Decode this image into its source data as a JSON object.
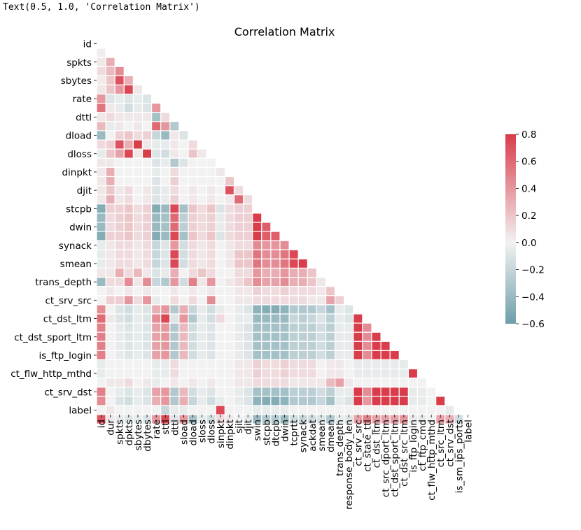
{
  "output_line": "Text(0.5, 1.0, 'Correlation Matrix')",
  "chart_data": {
    "type": "heatmap",
    "title": "Correlation Matrix",
    "mask": "upper-triangle",
    "features": [
      "id",
      "dur",
      "spkts",
      "dpkts",
      "sbytes",
      "dbytes",
      "rate",
      "sttl",
      "dttl",
      "sload",
      "dload",
      "sloss",
      "dloss",
      "sinpkt",
      "dinpkt",
      "sjit",
      "djit",
      "swin",
      "stcpb",
      "dtcpb",
      "dwin",
      "tcprtt",
      "synack",
      "ackdat",
      "smean",
      "dmean",
      "trans_depth",
      "response_body_len",
      "ct_srv_src",
      "ct_state_ttl",
      "ct_dst_ltm",
      "ct_src_dport_ltm",
      "ct_dst_sport_ltm",
      "ct_dst_src_ltm",
      "is_ftp_login",
      "ct_ftp_cmd",
      "ct_flw_http_mthd",
      "ct_src_ltm",
      "ct_srv_dst",
      "is_sm_ips_ports",
      "label"
    ],
    "y_tick_labels": [
      "id",
      "spkts",
      "sbytes",
      "rate",
      "dttl",
      "dload",
      "dloss",
      "dinpkt",
      "djit",
      "stcpb",
      "dwin",
      "synack",
      "smean",
      "trans_depth",
      "ct_srv_src",
      "ct_dst_ltm",
      "ct_dst_sport_ltm",
      "is_ftp_login",
      "ct_flw_http_mthd",
      "ct_srv_dst",
      "label"
    ],
    "x_tick_labels": [
      "id",
      "dur",
      "spkts",
      "dpkts",
      "sbytes",
      "dbytes",
      "rate",
      "sttl",
      "dttl",
      "sload",
      "dload",
      "sloss",
      "dloss",
      "sinpkt",
      "dinpkt",
      "sjit",
      "djit",
      "swin",
      "stcpb",
      "dtcpb",
      "dwin",
      "tcprtt",
      "synack",
      "ackdat",
      "smean",
      "dmean",
      "trans_depth",
      "response_body_len",
      "ct_srv_src",
      "ct_state_ttl",
      "ct_dst_ltm",
      "ct_src_dport_ltm",
      "ct_dst_sport_ltm",
      "ct_dst_src_ltm",
      "is_ftp_login",
      "ct_ftp_cmd",
      "ct_flw_http_mthd",
      "ct_src_ltm",
      "ct_srv_dst",
      "is_sm_ips_ports",
      "label"
    ],
    "rows": [
      [],
      [
        0.02
      ],
      [
        0.05,
        0.3
      ],
      [
        0.1,
        0.25,
        0.45
      ],
      [
        0.03,
        0.2,
        0.7,
        0.3
      ],
      [
        0.05,
        0.2,
        0.4,
        0.75,
        0.05
      ],
      [
        0.4,
        -0.1,
        -0.05,
        -0.1,
        -0.05,
        -0.1
      ],
      [
        0.55,
        0.05,
        -0.05,
        -0.15,
        -0.05,
        -0.1,
        0.4
      ],
      [
        0.05,
        0.1,
        0.05,
        0.05,
        0.05,
        0.05,
        -0.35,
        0.1
      ],
      [
        0.25,
        -0.05,
        0.05,
        0.0,
        0.05,
        0.0,
        0.6,
        0.4,
        -0.3
      ],
      [
        -0.4,
        0.0,
        0.15,
        0.2,
        0.1,
        0.15,
        -0.2,
        -0.4,
        0.05,
        -0.1
      ],
      [
        0.1,
        0.15,
        0.7,
        0.3,
        0.8,
        0.05,
        -0.05,
        -0.05,
        0.05,
        0.0,
        0.1
      ],
      [
        -0.05,
        0.2,
        0.35,
        0.75,
        0.05,
        0.8,
        -0.1,
        -0.15,
        0.05,
        0.0,
        0.2,
        0.05
      ],
      [
        0.05,
        0.05,
        0.0,
        0.0,
        0.0,
        0.0,
        -0.1,
        -0.05,
        -0.3,
        -0.1,
        0.0,
        0.0,
        0.0
      ],
      [
        0.05,
        0.3,
        0.0,
        0.0,
        0.0,
        0.0,
        -0.05,
        0.0,
        0.1,
        0.0,
        0.0,
        0.0,
        0.0,
        0.05
      ],
      [
        0.05,
        0.3,
        0.0,
        0.0,
        0.0,
        0.0,
        -0.1,
        0.0,
        0.15,
        0.0,
        0.0,
        0.0,
        0.0,
        0.0,
        0.2
      ],
      [
        0.05,
        0.2,
        0.05,
        0.1,
        0.0,
        0.05,
        -0.1,
        -0.05,
        0.1,
        0.0,
        0.05,
        0.0,
        0.05,
        0.0,
        0.7,
        0.1
      ],
      [
        0.05,
        0.3,
        0.05,
        0.1,
        0.0,
        0.05,
        -0.1,
        -0.05,
        0.15,
        0.0,
        0.05,
        0.0,
        0.05,
        0.0,
        0.05,
        0.6,
        0.1
      ],
      [
        -0.5,
        0.15,
        0.15,
        0.2,
        0.1,
        0.15,
        -0.5,
        -0.4,
        0.75,
        -0.35,
        0.2,
        0.1,
        0.2,
        -0.1,
        0.1,
        0.15,
        0.15
      ],
      [
        -0.4,
        0.1,
        0.15,
        0.2,
        0.1,
        0.15,
        -0.4,
        -0.35,
        0.6,
        -0.25,
        0.15,
        0.1,
        0.15,
        -0.05,
        0.1,
        0.15,
        0.15,
        0.8
      ],
      [
        -0.4,
        0.1,
        0.15,
        0.2,
        0.1,
        0.15,
        -0.4,
        -0.35,
        0.6,
        -0.25,
        0.15,
        0.1,
        0.15,
        -0.05,
        0.1,
        0.15,
        0.15,
        0.8,
        0.65
      ],
      [
        -0.5,
        0.15,
        0.15,
        0.2,
        0.1,
        0.15,
        -0.5,
        -0.4,
        0.75,
        -0.35,
        0.2,
        0.1,
        0.2,
        -0.1,
        0.1,
        0.15,
        0.15,
        0.8,
        0.65,
        0.65
      ],
      [
        -0.05,
        0.05,
        0.1,
        0.1,
        0.05,
        0.1,
        -0.2,
        -0.1,
        0.4,
        -0.15,
        0.1,
        0.05,
        0.1,
        0.0,
        0.05,
        0.1,
        0.1,
        0.45,
        0.4,
        0.4,
        0.45
      ],
      [
        -0.05,
        0.05,
        0.1,
        0.1,
        0.05,
        0.1,
        -0.2,
        -0.1,
        0.75,
        -0.15,
        0.1,
        0.05,
        0.1,
        0.0,
        0.05,
        0.2,
        0.2,
        0.55,
        0.45,
        0.45,
        0.55,
        0.75
      ],
      [
        -0.05,
        0.05,
        0.1,
        0.1,
        0.05,
        0.1,
        -0.2,
        -0.1,
        0.75,
        -0.15,
        0.1,
        0.05,
        0.1,
        0.0,
        0.05,
        0.2,
        0.2,
        0.55,
        0.45,
        0.45,
        0.55,
        0.75,
        0.8
      ],
      [
        0.05,
        0.05,
        0.3,
        0.1,
        0.25,
        0.05,
        -0.1,
        -0.05,
        0.3,
        0.0,
        0.1,
        0.2,
        0.1,
        0.0,
        0.0,
        0.1,
        0.1,
        0.4,
        0.3,
        0.3,
        0.4,
        0.3,
        0.3,
        0.2
      ],
      [
        -0.4,
        0.1,
        0.1,
        0.45,
        0.05,
        0.45,
        -0.2,
        -0.3,
        0.4,
        -0.15,
        0.5,
        0.05,
        0.4,
        0.0,
        0.05,
        0.1,
        0.2,
        0.45,
        0.35,
        0.35,
        0.45,
        0.3,
        0.3,
        0.2,
        0.05
      ],
      [
        0.0,
        0.05,
        0.0,
        0.05,
        0.0,
        0.05,
        0.0,
        0.0,
        0.05,
        0.0,
        0.05,
        0.0,
        0.05,
        0.0,
        0.0,
        0.05,
        0.05,
        0.15,
        0.1,
        0.1,
        0.15,
        0.1,
        0.1,
        0.1,
        0.05,
        0.2
      ],
      [
        0.0,
        0.15,
        0.15,
        0.4,
        0.1,
        0.4,
        -0.05,
        0.0,
        0.1,
        0.0,
        0.1,
        0.0,
        0.45,
        0.0,
        0.0,
        0.05,
        0.05,
        0.1,
        0.1,
        0.1,
        0.1,
        0.1,
        0.1,
        0.05,
        0.05,
        0.35,
        0.15
      ],
      [
        0.45,
        0.0,
        -0.1,
        -0.15,
        -0.05,
        -0.1,
        0.3,
        0.4,
        -0.3,
        0.3,
        -0.2,
        -0.05,
        -0.15,
        -0.05,
        0.0,
        -0.05,
        -0.1,
        -0.45,
        -0.5,
        -0.5,
        -0.45,
        -0.3,
        -0.3,
        -0.3,
        -0.2,
        -0.35,
        -0.05,
        -0.1
      ],
      [
        0.6,
        0.05,
        -0.1,
        -0.15,
        -0.05,
        -0.1,
        0.45,
        0.75,
        -0.1,
        0.4,
        -0.3,
        -0.05,
        -0.15,
        0.1,
        0.0,
        -0.05,
        -0.05,
        -0.4,
        -0.4,
        -0.4,
        -0.4,
        -0.2,
        -0.25,
        -0.2,
        -0.1,
        -0.25,
        -0.05,
        -0.1,
        0.8
      ],
      [
        0.5,
        0.0,
        -0.05,
        -0.1,
        -0.05,
        -0.1,
        0.35,
        0.4,
        -0.3,
        0.25,
        -0.15,
        -0.05,
        -0.1,
        0.0,
        0.0,
        -0.05,
        -0.1,
        -0.35,
        -0.35,
        -0.35,
        -0.35,
        -0.25,
        -0.25,
        -0.25,
        -0.15,
        -0.25,
        -0.05,
        -0.05,
        0.8,
        0.45
      ],
      [
        0.5,
        0.0,
        -0.05,
        -0.1,
        -0.05,
        -0.1,
        0.35,
        0.4,
        -0.3,
        0.25,
        -0.15,
        -0.05,
        -0.1,
        0.0,
        0.0,
        -0.05,
        -0.1,
        -0.35,
        -0.35,
        -0.35,
        -0.35,
        -0.25,
        -0.25,
        -0.25,
        -0.15,
        -0.25,
        -0.05,
        -0.05,
        0.8,
        0.45,
        0.8
      ],
      [
        0.5,
        0.0,
        -0.05,
        -0.1,
        -0.05,
        -0.1,
        0.35,
        0.4,
        -0.3,
        0.25,
        -0.15,
        -0.05,
        -0.1,
        0.0,
        0.0,
        -0.05,
        -0.1,
        -0.35,
        -0.35,
        -0.35,
        -0.35,
        -0.25,
        -0.25,
        -0.25,
        -0.15,
        -0.25,
        -0.05,
        -0.05,
        0.8,
        0.45,
        0.8,
        0.8
      ],
      [
        0.5,
        0.0,
        -0.05,
        -0.1,
        -0.05,
        -0.1,
        0.35,
        0.4,
        -0.3,
        0.25,
        -0.15,
        -0.05,
        -0.1,
        0.0,
        0.0,
        -0.05,
        -0.1,
        -0.35,
        -0.35,
        -0.35,
        -0.35,
        -0.25,
        -0.25,
        -0.25,
        -0.15,
        -0.25,
        -0.05,
        -0.05,
        0.8,
        0.45,
        0.8,
        0.8,
        0.8
      ],
      [
        -0.05,
        0.0,
        0.0,
        0.0,
        0.0,
        0.0,
        -0.05,
        -0.05,
        0.1,
        0.0,
        0.0,
        0.0,
        0.0,
        0.0,
        0.0,
        0.05,
        0.05,
        0.15,
        0.1,
        0.1,
        0.15,
        0.1,
        0.1,
        0.1,
        0.0,
        0.05,
        0.05,
        0.0,
        -0.05,
        -0.05,
        -0.05,
        -0.05,
        -0.05,
        -0.05
      ],
      [
        -0.05,
        0.0,
        0.0,
        0.0,
        0.0,
        0.0,
        -0.05,
        -0.05,
        0.1,
        0.0,
        0.0,
        0.0,
        0.0,
        0.0,
        0.0,
        0.05,
        0.05,
        0.15,
        0.1,
        0.1,
        0.15,
        0.1,
        0.1,
        0.1,
        0.0,
        0.05,
        0.05,
        0.0,
        -0.05,
        -0.05,
        -0.05,
        -0.05,
        -0.05,
        -0.05,
        0.8
      ],
      [
        0.0,
        0.05,
        0.05,
        0.1,
        0.0,
        0.05,
        -0.05,
        0.0,
        0.05,
        0.0,
        0.05,
        0.0,
        0.05,
        0.0,
        0.0,
        0.05,
        0.05,
        0.1,
        0.1,
        0.1,
        0.1,
        0.05,
        0.05,
        0.05,
        0.05,
        0.25,
        0.35,
        0.05,
        0.0,
        0.0,
        0.0,
        0.0,
        0.0,
        0.0,
        0.0,
        0.0
      ],
      [
        0.5,
        0.0,
        -0.05,
        -0.1,
        -0.05,
        -0.1,
        0.35,
        0.4,
        -0.3,
        0.25,
        -0.15,
        -0.05,
        -0.1,
        0.0,
        0.0,
        -0.05,
        -0.1,
        -0.35,
        -0.35,
        -0.35,
        -0.35,
        -0.25,
        -0.25,
        -0.25,
        -0.15,
        -0.25,
        -0.05,
        -0.05,
        0.8,
        0.45,
        0.8,
        0.8,
        0.8,
        0.8,
        -0.05,
        -0.05,
        0.0
      ],
      [
        0.45,
        0.0,
        -0.1,
        -0.15,
        -0.05,
        -0.1,
        0.3,
        0.4,
        -0.3,
        0.3,
        -0.2,
        -0.05,
        -0.15,
        -0.05,
        0.0,
        -0.05,
        -0.1,
        -0.45,
        -0.5,
        -0.5,
        -0.45,
        -0.3,
        -0.3,
        -0.3,
        -0.2,
        -0.35,
        -0.05,
        -0.1,
        0.8,
        0.4,
        0.8,
        0.8,
        0.8,
        0.8,
        -0.05,
        -0.05,
        0.0,
        0.8
      ],
      [
        0.0,
        0.05,
        0.0,
        0.0,
        0.0,
        0.0,
        0.0,
        -0.2,
        -0.05,
        -0.05,
        0.0,
        0.0,
        0.0,
        0.75,
        0.0,
        0.0,
        0.0,
        -0.05,
        -0.05,
        -0.05,
        -0.05,
        0.0,
        0.0,
        0.0,
        0.0,
        0.0,
        0.0,
        0.0,
        0.0,
        0.0,
        0.0,
        0.0,
        0.0,
        0.0,
        0.0,
        0.0,
        0.0,
        0.0,
        -0.05
      ],
      [
        0.7,
        0.05,
        -0.05,
        -0.1,
        -0.05,
        -0.1,
        0.4,
        0.75,
        -0.1,
        0.4,
        -0.35,
        -0.05,
        -0.15,
        0.1,
        0.05,
        0.0,
        -0.05,
        -0.4,
        -0.3,
        -0.3,
        -0.4,
        -0.15,
        -0.2,
        -0.15,
        -0.1,
        -0.3,
        -0.05,
        -0.1,
        0.35,
        0.5,
        0.35,
        0.35,
        0.35,
        0.4,
        -0.05,
        -0.05,
        0.0,
        0.35,
        0.3,
        -0.15
      ]
    ],
    "colorbar": {
      "min": -0.6,
      "max": 0.8,
      "ticks": [
        0.8,
        0.6,
        0.4,
        0.2,
        0.0,
        -0.2,
        -0.4,
        -0.6
      ],
      "tick_labels": [
        "0.8",
        "0.6",
        "0.4",
        "0.2",
        "0.0",
        "−0.2",
        "−0.4",
        "−0.6"
      ]
    },
    "colors": {
      "negative": "#6d9ea9",
      "center": "#f2f2f2",
      "positive": "#d93c4a"
    }
  }
}
